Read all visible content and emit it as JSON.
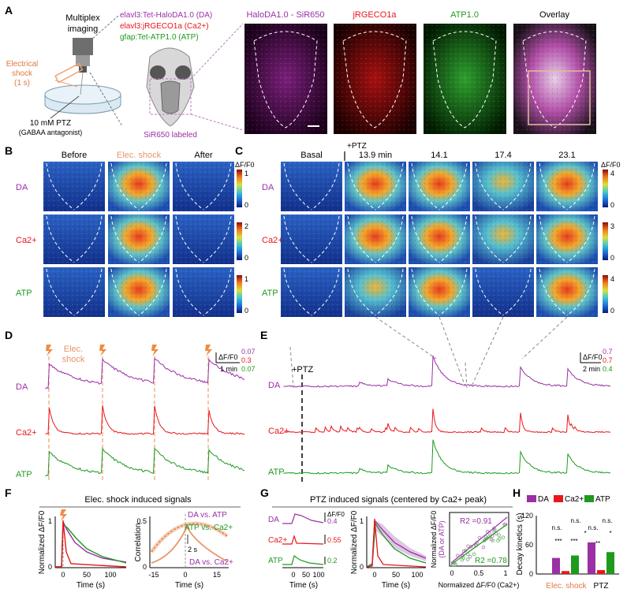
{
  "panel_letters": [
    "A",
    "B",
    "C",
    "D",
    "E",
    "F",
    "G",
    "H"
  ],
  "colors": {
    "da": "#9b2fa6",
    "ca": "#e8161b",
    "atp": "#1e9a1e",
    "shock": "#f0a070",
    "grey": "#777777"
  },
  "panelA": {
    "multiplex": [
      "Multiplex",
      "imaging"
    ],
    "shock": [
      "Electrical",
      "shock",
      "(1 s)"
    ],
    "ptz": [
      "10 mM PTZ",
      "(GABAA antagonist)"
    ],
    "line_da": "elavl3:Tet-HaloDA1.0 (DA)",
    "line_ca": "elavl3:jRGECO1a (Ca2+)",
    "line_atp": "gfap:Tet-ATP1.0 (ATP)",
    "sir650": "SiR650 labeled",
    "image_titles": [
      "HaloDA1.0 - SiR650",
      "jRGECO1a",
      "ATP1.0",
      "Overlay"
    ]
  },
  "panelB": {
    "cols": [
      "Before",
      "Elec. shock",
      "After"
    ],
    "rows": [
      "DA",
      "Ca2+",
      "ATP"
    ],
    "cb_label": "ΔF/F0",
    "cb_ticks": [
      [
        "1",
        "0"
      ],
      [
        "2",
        "0"
      ],
      [
        "1",
        "0"
      ]
    ]
  },
  "panelC": {
    "cols": [
      "Basal",
      "13.9 min",
      "14.1",
      "17.4",
      "23.1"
    ],
    "ptz": "+PTZ",
    "rows": [
      "DA",
      "Ca2+",
      "ATP"
    ],
    "cb_label": "ΔF/F0",
    "cb_ticks": [
      [
        "4",
        "0"
      ],
      [
        "3",
        "0"
      ],
      [
        "4",
        "0"
      ]
    ]
  },
  "panelD": {
    "shock_label": [
      "Elec.",
      "shock"
    ],
    "rows": [
      "DA",
      "Ca2+",
      "ATP"
    ],
    "scale_label": "ΔF/F0",
    "scale_values": [
      "0.07",
      "0.3",
      "0.07"
    ],
    "time_scale": "1 min"
  },
  "panelE": {
    "ptz": "+PTZ",
    "rows": [
      "DA",
      "Ca2+",
      "ATP"
    ],
    "scale_label": "ΔF/F0",
    "scale_values": [
      "0.7",
      "0.7",
      "0.4"
    ],
    "time_scale": "2 min"
  },
  "panelF": {
    "title": "Elec. shock induced signals",
    "left": {
      "ylabel": "Normalized ΔF/F0",
      "xlabel": "Time (s)",
      "y_ticks": [
        "0",
        "1"
      ],
      "x_ticks": [
        "0",
        "50",
        "100"
      ]
    },
    "right": {
      "ylabel": "Correlation",
      "xlabel": "Time (s)",
      "y_ticks": [
        "0",
        "0.5"
      ],
      "x_ticks": [
        "-15",
        "0",
        "15"
      ],
      "labels": [
        "DA vs. ATP",
        "ATP vs. Ca2+",
        "DA vs. Ca2+"
      ],
      "lag": "2 s"
    }
  },
  "panelG": {
    "title": "PTZ induced signals (centered by Ca2+ peak)",
    "rows": [
      "DA",
      "Ca2+",
      "ATP"
    ],
    "scale_values": [
      "0.4",
      "0.55",
      "0.2"
    ],
    "scale_label": "ΔF/F0",
    "xticks_small": [
      "0",
      "50",
      "100"
    ],
    "mid": {
      "ylabel": "Normalized ΔF/F0",
      "xlabel": "Time (s)",
      "y_ticks": [
        "0",
        "1"
      ],
      "x_ticks": [
        "0",
        "50",
        "100"
      ]
    },
    "scatter": {
      "ylabel1": "Normalized ΔF/F0",
      "ylabel2": "(DA or ATP)",
      "xlabel": "Normalized ΔF/F0 (Ca2+)",
      "r2_da": "R2 =0.91",
      "r2_atp": "R2 =0.78",
      "ticks": [
        "0",
        "0.5",
        "1"
      ]
    }
  },
  "panelH": {
    "legend": [
      "DA",
      "Ca2+",
      "ATP"
    ],
    "ylabel": "Decay kinetics (s)",
    "y_ticks": [
      "0",
      "60",
      "120"
    ],
    "groups": [
      "Elec. shock",
      "PTZ"
    ],
    "sig": [
      "n.s.",
      "n.s.",
      "n.s.",
      "n.s.",
      "***",
      "***",
      "*",
      "**",
      "*"
    ]
  },
  "chart_data": [
    {
      "type": "bar",
      "title": "",
      "ylabel": "Decay kinetics (s)",
      "ylim": [
        0,
        120
      ],
      "categories": [
        "Elec. shock",
        "PTZ"
      ],
      "series": [
        {
          "name": "DA",
          "values": [
            33,
            65
          ]
        },
        {
          "name": "Ca2+",
          "values": [
            6,
            8
          ]
        },
        {
          "name": "ATP",
          "values": [
            38,
            45
          ]
        }
      ]
    },
    {
      "type": "scatter",
      "xlabel": "Normalized ΔF/F0 (Ca2+)",
      "ylabel": "Normalized ΔF/F0 (DA or ATP)",
      "series": [
        {
          "name": "DA",
          "fit": [
            [
              0,
              0.05
            ],
            [
              1,
              0.9
            ]
          ]
        },
        {
          "name": "ATP",
          "fit": [
            [
              0,
              0.0
            ],
            [
              1,
              0.78
            ]
          ]
        }
      ]
    }
  ]
}
